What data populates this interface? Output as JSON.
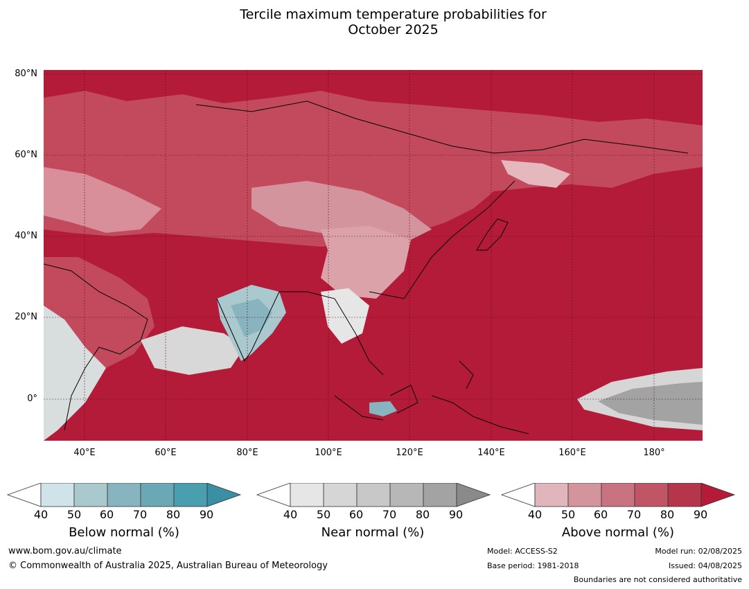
{
  "title_line1": "Tercile maximum temperature probabilities for",
  "title_line2": "October 2025",
  "map": {
    "lat_labels": [
      "80°N",
      "60°N",
      "40°N",
      "20°N",
      "0°"
    ],
    "lon_labels": [
      "40°E",
      "60°E",
      "80°E",
      "100°E",
      "120°E",
      "140°E",
      "160°E",
      "180°"
    ],
    "ocean_color": "#b31b38"
  },
  "legend": {
    "ticks": [
      "40",
      "50",
      "60",
      "70",
      "80",
      "90"
    ],
    "below": {
      "label": "Below normal (%)",
      "colors": [
        "#ffffff",
        "#cfe3e8",
        "#a9c9cf",
        "#87b4be",
        "#6aa8b5",
        "#4a9fae",
        "#3a8fa3"
      ]
    },
    "near": {
      "label": "Near normal (%)",
      "colors": [
        "#ffffff",
        "#e6e6e6",
        "#d6d6d6",
        "#c8c8c8",
        "#b7b7b7",
        "#a3a3a3",
        "#8a8a8a"
      ]
    },
    "above": {
      "label": "Above normal (%)",
      "colors": [
        "#ffffff",
        "#e0b5bb",
        "#d4949d",
        "#c97380",
        "#c05566",
        "#b5364b",
        "#b31b38"
      ]
    }
  },
  "footer": {
    "website": "www.bom.gov.au/climate",
    "copyright": "© Commonwealth of Australia 2025, Australian Bureau of Meteorology",
    "model": "Model: ACCESS-S2",
    "base_period": "Base period: 1981-2018",
    "model_run": "Model run: 02/08/2025",
    "issued": "Issued: 04/08/2025",
    "disclaimer": "Boundaries are not considered authoritative"
  }
}
